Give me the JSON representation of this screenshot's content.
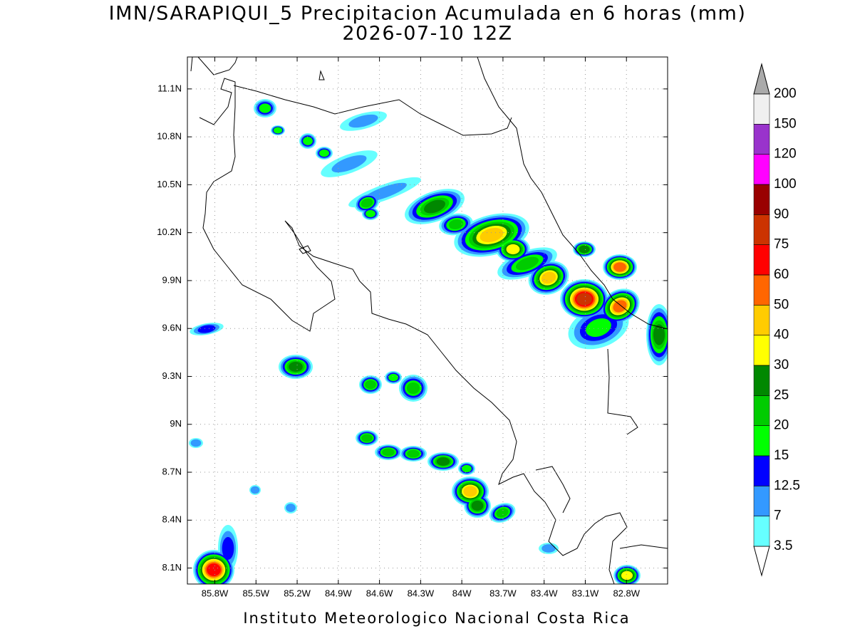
{
  "title": "IMN/SARAPIQUI_5 Precipitacion Acumulada en 6 horas (mm)",
  "subtitle": "2026-07-10 12Z",
  "footer": "Instituto Meteorologico Nacional Costa Rica",
  "map": {
    "lonlim": [
      -86,
      -82.5
    ],
    "latlim": [
      8,
      11.3
    ],
    "grid": true,
    "lon_ticks": [
      {
        "value": -85.8,
        "label": "85.8W"
      },
      {
        "value": -85.5,
        "label": "85.5W"
      },
      {
        "value": -85.2,
        "label": "85.2W"
      },
      {
        "value": -84.9,
        "label": "84.9W"
      },
      {
        "value": -84.6,
        "label": "84.6W"
      },
      {
        "value": -84.3,
        "label": "84.3W"
      },
      {
        "value": -84,
        "label": "84W"
      },
      {
        "value": -83.7,
        "label": "83.7W"
      },
      {
        "value": -83.4,
        "label": "83.4W"
      },
      {
        "value": -83.1,
        "label": "83.1W"
      },
      {
        "value": -82.8,
        "label": "82.8W"
      }
    ],
    "lat_ticks": [
      {
        "value": 8.1,
        "label": "8.1N"
      },
      {
        "value": 8.4,
        "label": "8.4N"
      },
      {
        "value": 8.7,
        "label": "8.7N"
      },
      {
        "value": 9,
        "label": "9N"
      },
      {
        "value": 9.3,
        "label": "9.3N"
      },
      {
        "value": 9.6,
        "label": "9.6N"
      },
      {
        "value": 9.9,
        "label": "9.9N"
      },
      {
        "value": 10.2,
        "label": "10.2N"
      },
      {
        "value": 10.5,
        "label": "10.5N"
      },
      {
        "value": 10.8,
        "label": "10.8N"
      },
      {
        "value": 11.1,
        "label": "11.1N"
      }
    ]
  },
  "colorbar": {
    "levels": [
      3.5,
      7,
      12.5,
      15,
      20,
      25,
      30,
      40,
      50,
      60,
      75,
      90,
      100,
      120,
      150,
      200
    ],
    "colors": [
      "#66ffff",
      "#3399ff",
      "#0000ff",
      "#00ff00",
      "#00cc00",
      "#008800",
      "#ffff00",
      "#ffcc00",
      "#ff6600",
      "#ff0000",
      "#cc3300",
      "#990000",
      "#ff00ff",
      "#9933cc",
      "#f0f0f0"
    ],
    "under_color": "#ffffff",
    "over_color": "#aaaaaa"
  }
}
